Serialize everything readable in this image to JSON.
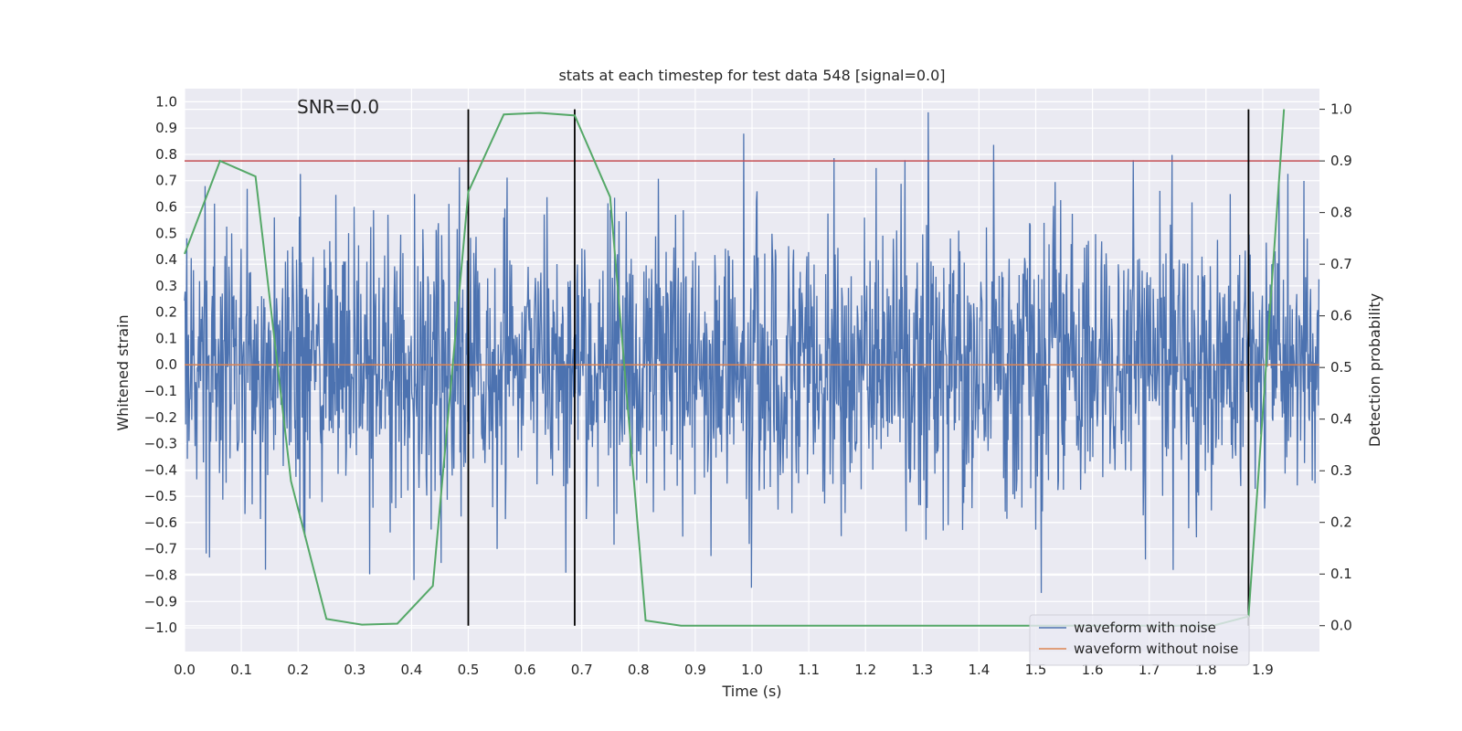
{
  "chart_data": {
    "type": "line",
    "title": "stats at each timestep for test data 548 [signal=0.0]",
    "xlabel": "Time (s)",
    "ylabel": "Whitened strain",
    "y2label": "Detection probability",
    "annotation": "SNR=0.0",
    "xlim": [
      0.0,
      2.0
    ],
    "ylim": [
      -1.09,
      1.05
    ],
    "y2lim": [
      -0.05,
      1.04
    ],
    "grid": true,
    "legend_position": "lower-right",
    "x_ticks": [
      0.0,
      0.1,
      0.2,
      0.3,
      0.4,
      0.5,
      0.6,
      0.7,
      0.8,
      0.9,
      1.0,
      1.1,
      1.2,
      1.3,
      1.4,
      1.5,
      1.6,
      1.7,
      1.8,
      1.9
    ],
    "x_tick_labels": [
      "0.0",
      "0.1",
      "0.2",
      "0.3",
      "0.4",
      "0.5",
      "0.6",
      "0.7",
      "0.8",
      "0.9",
      "1.0",
      "1.1",
      "1.2",
      "1.3",
      "1.4",
      "1.5",
      "1.6",
      "1.7",
      "1.8",
      "1.9"
    ],
    "y_ticks": [
      1.0,
      0.9,
      0.8,
      0.7,
      0.6,
      0.5,
      0.4,
      0.3,
      0.2,
      0.1,
      0.0,
      -0.1,
      -0.2,
      -0.3,
      -0.4,
      -0.5,
      -0.6,
      -0.7,
      -0.8,
      -0.9,
      -1.0
    ],
    "y_tick_labels": [
      "1.0",
      "0.9",
      "0.8",
      "0.7",
      "0.6",
      "0.5",
      "0.4",
      "0.3",
      "0.2",
      "0.1",
      "0.0",
      "−0.1",
      "−0.2",
      "−0.3",
      "−0.4",
      "−0.5",
      "−0.6",
      "−0.7",
      "−0.8",
      "−0.9",
      "−1.0"
    ],
    "y2_ticks": [
      1.0,
      0.9,
      0.8,
      0.7,
      0.6,
      0.5,
      0.4,
      0.3,
      0.2,
      0.1,
      0.0
    ],
    "y2_tick_labels": [
      "1.0",
      "0.9",
      "0.8",
      "0.7",
      "0.6",
      "0.5",
      "0.4",
      "0.3",
      "0.2",
      "0.1",
      "0.0"
    ],
    "series": [
      {
        "name": "waveform with noise",
        "color": "#4c72b0",
        "axis": "left",
        "kind": "noise",
        "n_samples": 2048,
        "amplitude_std": 0.26,
        "clip": 0.96
      },
      {
        "name": "waveform without noise",
        "color": "#dd8452",
        "axis": "left",
        "x": [
          0.0,
          2.0
        ],
        "values": [
          0.0,
          0.0
        ]
      },
      {
        "name": "detection probability",
        "color": "#55a868",
        "axis": "right",
        "x": [
          0.0,
          0.0625,
          0.125,
          0.1875,
          0.25,
          0.3125,
          0.375,
          0.4375,
          0.5,
          0.5625,
          0.625,
          0.6875,
          0.75,
          0.8125,
          0.875,
          0.9375,
          1.0,
          1.0625,
          1.125,
          1.1875,
          1.25,
          1.3125,
          1.375,
          1.4375,
          1.5,
          1.5625,
          1.625,
          1.6875,
          1.75,
          1.8125,
          1.875,
          1.9375
        ],
        "values": [
          0.72,
          0.9,
          0.87,
          0.28,
          0.013,
          0.002,
          0.004,
          0.077,
          0.84,
          0.99,
          0.993,
          0.988,
          0.83,
          0.01,
          0.0,
          0.0,
          0.0,
          0.0,
          0.0,
          0.0,
          0.0,
          0.0,
          0.0,
          0.0,
          0.0,
          0.0,
          0.0,
          0.0,
          0.0,
          0.0,
          0.018,
          1.0
        ]
      }
    ],
    "threshold": {
      "value": 0.9,
      "axis": "right",
      "color": "#c44e52"
    },
    "vertical_markers": {
      "x": [
        0.5,
        0.6875,
        1.875
      ],
      "color": "#000000"
    },
    "legend": [
      {
        "label": "waveform with noise",
        "color": "#4c72b0"
      },
      {
        "label": "waveform without noise",
        "color": "#dd8452"
      }
    ]
  }
}
